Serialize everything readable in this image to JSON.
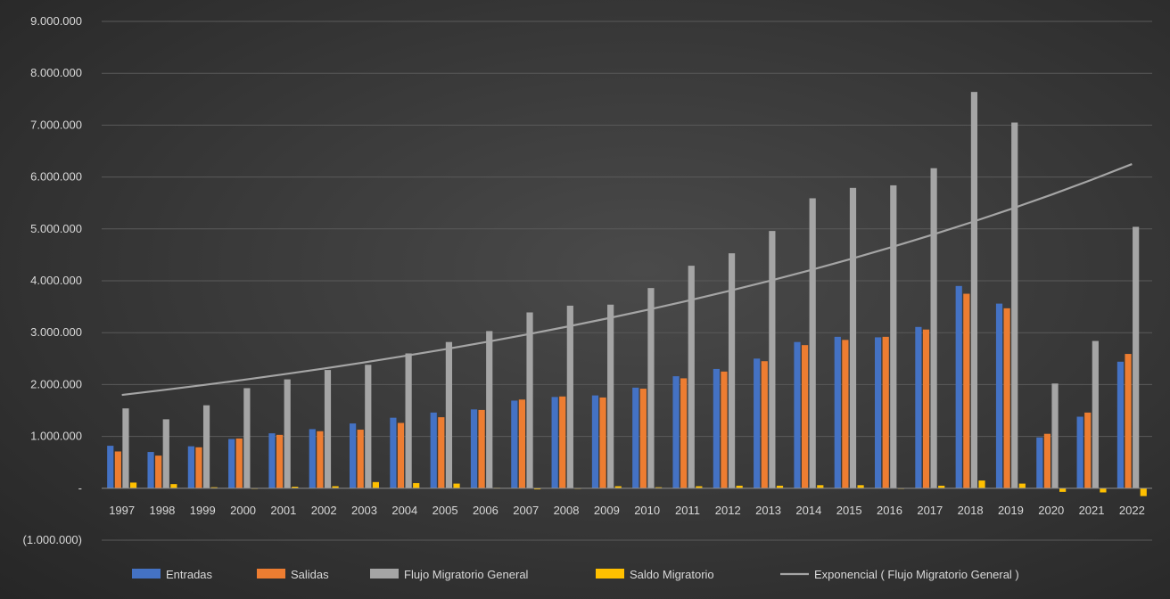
{
  "chart_data": {
    "type": "bar",
    "categories": [
      "1997",
      "1998",
      "1999",
      "2000",
      "2001",
      "2002",
      "2003",
      "2004",
      "2005",
      "2006",
      "2007",
      "2008",
      "2009",
      "2010",
      "2011",
      "2012",
      "2013",
      "2014",
      "2015",
      "2016",
      "2017",
      "2018",
      "2019",
      "2020",
      "2021",
      "2022"
    ],
    "series": [
      {
        "name": "Entradas",
        "color": "#4472c4",
        "values": [
          820000,
          700000,
          810000,
          950000,
          1060000,
          1140000,
          1250000,
          1360000,
          1460000,
          1520000,
          1690000,
          1760000,
          1790000,
          1940000,
          2160000,
          2300000,
          2500000,
          2820000,
          2920000,
          2910000,
          3110000,
          3900000,
          3560000,
          980000,
          1380000,
          2440000
        ]
      },
      {
        "name": "Salidas",
        "color": "#ed7d31",
        "values": [
          710000,
          630000,
          790000,
          960000,
          1030000,
          1100000,
          1130000,
          1260000,
          1370000,
          1510000,
          1710000,
          1770000,
          1750000,
          1920000,
          2120000,
          2250000,
          2450000,
          2760000,
          2860000,
          2920000,
          3060000,
          3750000,
          3470000,
          1050000,
          1460000,
          2590000
        ]
      },
      {
        "name": "Flujo Migratorio General",
        "color": "#a5a5a5",
        "values": [
          1540000,
          1330000,
          1600000,
          1930000,
          2100000,
          2280000,
          2380000,
          2600000,
          2820000,
          3030000,
          3390000,
          3520000,
          3540000,
          3860000,
          4290000,
          4530000,
          4960000,
          5590000,
          5790000,
          5840000,
          6170000,
          7640000,
          7050000,
          2020000,
          2840000,
          5040000
        ]
      },
      {
        "name": "Saldo Migratorio",
        "color": "#ffc000",
        "values": [
          110000,
          80000,
          20000,
          -10000,
          30000,
          40000,
          120000,
          100000,
          90000,
          10000,
          -20000,
          -10000,
          40000,
          20000,
          40000,
          50000,
          50000,
          60000,
          60000,
          -10000,
          50000,
          150000,
          90000,
          -70000,
          -80000,
          -150000
        ]
      }
    ],
    "trendline": {
      "name": "Exponencial ( Flujo Migratorio General )",
      "type": "exponential",
      "color": "#a5a5a5",
      "start": 1800000,
      "end": 6250000
    },
    "ylim": [
      -1000000,
      9000000
    ],
    "yticks": [
      -1000000,
      0,
      1000000,
      2000000,
      3000000,
      4000000,
      5000000,
      6000000,
      7000000,
      8000000,
      9000000
    ],
    "ytick_labels": [
      "(1.000.000)",
      "-",
      "1.000.000",
      "2.000.000",
      "3.000.000",
      "4.000.000",
      "5.000.000",
      "6.000.000",
      "7.000.000",
      "8.000.000",
      "9.000.000"
    ],
    "grid": true,
    "legend_position": "bottom",
    "title": "",
    "xlabel": "",
    "ylabel": ""
  }
}
